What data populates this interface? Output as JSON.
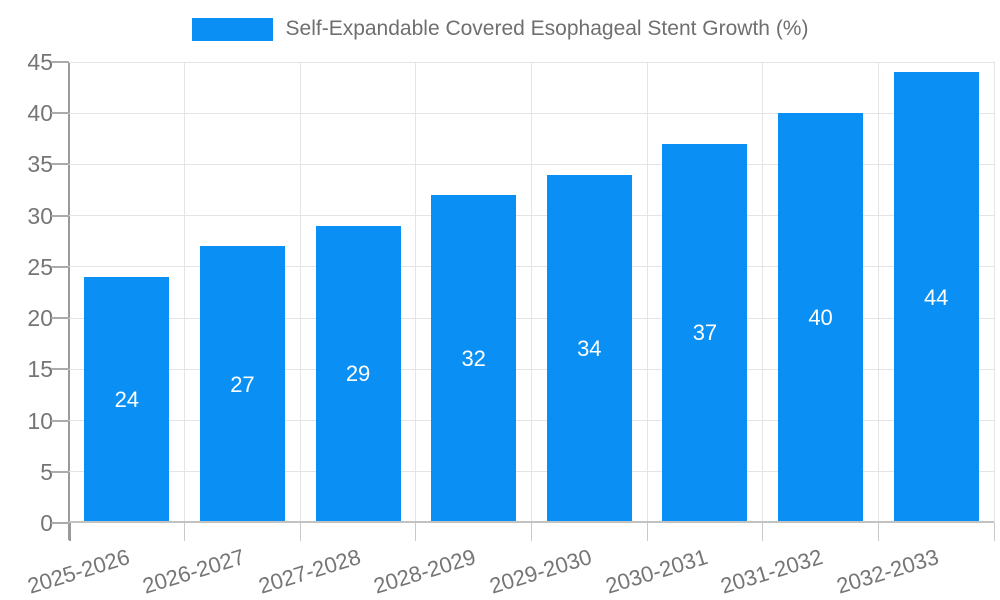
{
  "chart_data": {
    "type": "bar",
    "title": "Self-Expandable Covered Esophageal Stent Growth (%)",
    "legend_position": "top",
    "categories": [
      "2025-2026",
      "2026-2027",
      "2027-2028",
      "2028-2029",
      "2029-2030",
      "2030-2031",
      "2031-2032",
      "2032-2033"
    ],
    "values": [
      24,
      27,
      29,
      32,
      34,
      37,
      40,
      44
    ],
    "series_name": "Self-Expandable Covered Esophageal Stent Growth (%)",
    "xlabel": "",
    "ylabel": "",
    "ylim": [
      0,
      45
    ],
    "yticks": [
      0,
      5,
      10,
      15,
      20,
      25,
      30,
      35,
      40,
      45
    ],
    "grid": true,
    "colors": {
      "bar": "#0A90F5",
      "value_label": "#FFFFFF",
      "axis_text": "#757575",
      "title_text": "#6F6F6F",
      "gridline": "#E4E4E4"
    }
  }
}
